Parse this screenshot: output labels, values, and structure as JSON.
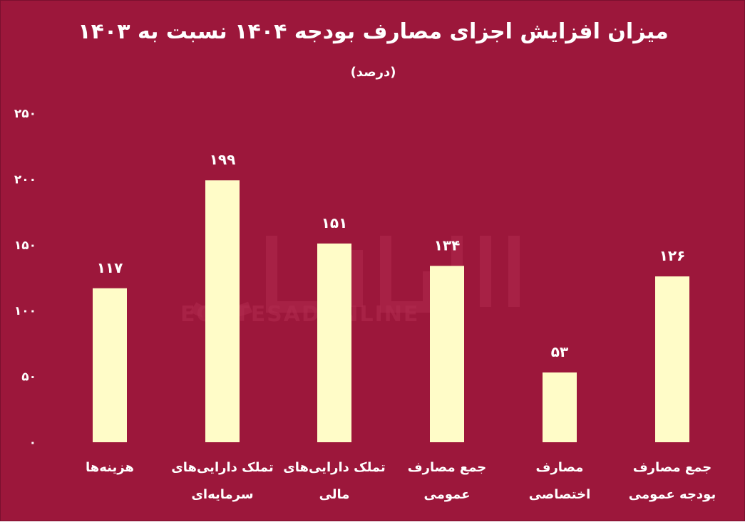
{
  "title": "میزان افزایش اجزای مصارف بودجه ۱۴۰۴ نسبت به ۱۴۰۳",
  "subtitle": "(درصد)",
  "watermark": "EGHTESADONLINE",
  "colors": {
    "background": "#9c173b",
    "bar": "#fffcc8",
    "text": "#ffffff"
  },
  "chart_data": {
    "type": "bar",
    "title": "میزان افزایش اجزای مصارف بودجه ۱۴۰۴ نسبت به ۱۴۰۳",
    "ylabel": "(درصد)",
    "ylim": [
      0,
      250
    ],
    "yticks": [
      0,
      50,
      100,
      150,
      200,
      250
    ],
    "ytick_labels": [
      "۰",
      "۵۰",
      "۱۰۰",
      "۱۵۰",
      "۲۰۰",
      "۲۵۰"
    ],
    "grid": false,
    "categories": [
      [
        "هزینه‌ها"
      ],
      [
        "تملک دارایی‌های",
        "سرمایه‌ای"
      ],
      [
        "تملک دارایی‌های",
        "مالی"
      ],
      [
        "جمع مصارف",
        "عمومی"
      ],
      [
        "مصارف",
        "اختصاصی"
      ],
      [
        "جمع مصارف",
        "بودجه عمومی"
      ]
    ],
    "values": [
      117,
      199,
      151,
      134,
      53,
      126
    ],
    "value_labels": [
      "۱۱۷",
      "۱۹۹",
      "۱۵۱",
      "۱۳۴",
      "۵۳",
      "۱۲۶"
    ]
  }
}
